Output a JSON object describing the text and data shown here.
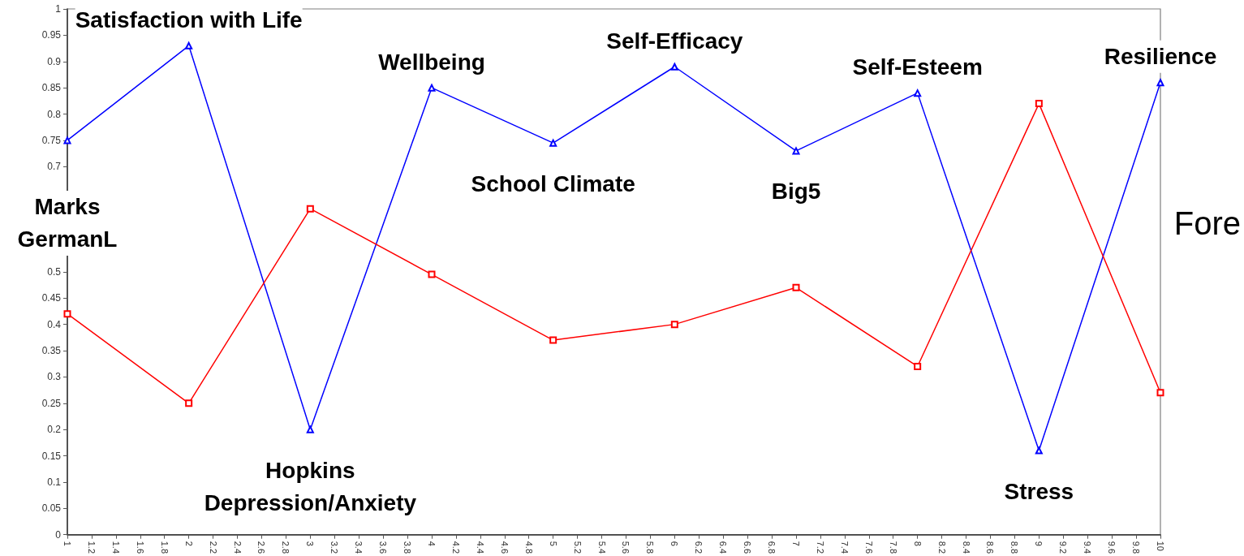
{
  "chart_data": {
    "type": "line",
    "x": [
      1,
      2,
      3,
      4,
      5,
      6,
      7,
      8,
      9,
      10
    ],
    "series": [
      {
        "color": "#0000ff",
        "marker": "triangle",
        "values": [
          0.75,
          0.93,
          0.2,
          0.85,
          0.745,
          0.89,
          0.73,
          0.84,
          0.16,
          0.86
        ]
      },
      {
        "color": "#ff0000",
        "marker": "square",
        "values": [
          0.42,
          0.25,
          0.62,
          0.495,
          0.37,
          0.4,
          0.47,
          0.32,
          0.82,
          0.27
        ]
      }
    ],
    "xlim": [
      1,
      10
    ],
    "xticks": [
      1,
      1.2,
      1.4,
      1.6,
      1.8,
      2,
      2.2,
      2.4,
      2.6,
      2.8,
      3,
      3.2,
      3.4,
      3.6,
      3.8,
      4,
      4.2,
      4.4,
      4.6,
      4.8,
      5,
      5.2,
      5.4,
      5.6,
      5.8,
      6,
      6.2,
      6.4,
      6.6,
      6.8,
      7,
      7.2,
      7.4,
      7.6,
      7.8,
      8,
      8.2,
      8.4,
      8.6,
      8.8,
      9,
      9.2,
      9.4,
      9.6,
      9.8,
      10
    ],
    "ylim": [
      0,
      1
    ],
    "yticks": [
      0,
      0.05,
      0.1,
      0.15,
      0.2,
      0.25,
      0.3,
      0.35,
      0.4,
      0.45,
      0.5,
      0.7,
      0.75,
      0.8,
      0.85,
      0.9,
      0.95,
      1
    ],
    "grid": false,
    "annotations": [
      {
        "text": "Satisfaction with Life",
        "x": 2,
        "y": 0.93
      },
      {
        "text": "Wellbeing",
        "x": 4,
        "y": 0.85
      },
      {
        "text": "Self-Efficacy",
        "x": 6,
        "y": 0.89
      },
      {
        "text": "Self-Esteem",
        "x": 8,
        "y": 0.84
      },
      {
        "text": "Resilience",
        "x": 10,
        "y": 0.86
      },
      {
        "text": "School Climate",
        "x": 5,
        "y": 0.745
      },
      {
        "text": "Big5",
        "x": 7,
        "y": 0.73
      },
      {
        "text": "Marks\nGermanL",
        "x": 1,
        "y": 0.75
      },
      {
        "text": "Hopkins\nDepression/Anxiety",
        "x": 3,
        "y": 0.2
      },
      {
        "text": "Stress",
        "x": 9,
        "y": 0.16
      },
      "Fore"
    ]
  }
}
